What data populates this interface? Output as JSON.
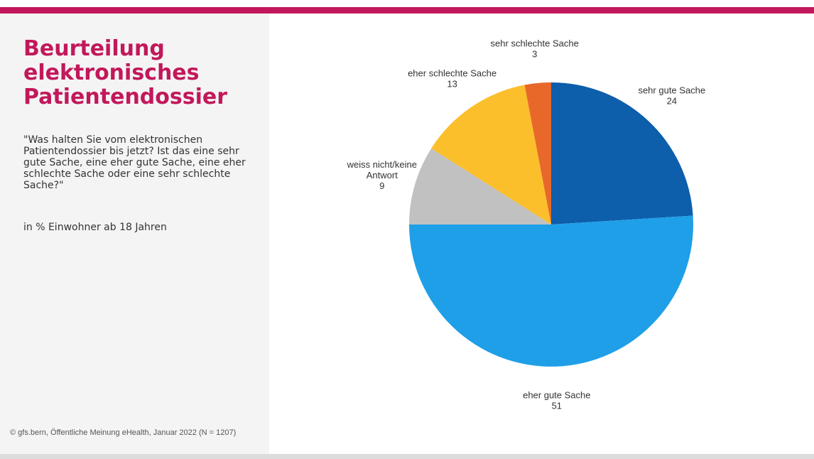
{
  "header": {
    "title_lines": [
      "Beurteilung",
      "elektronisches",
      "Patientendossier"
    ],
    "question": "\"Was halten Sie vom elektronischen Patientendossier bis jetzt? Ist das eine sehr gute Sache, eine eher gute Sache, eine eher schlechte Sache oder eine sehr schlechte Sache?\"",
    "unit_note": "in % Einwohner ab 18 Jahren"
  },
  "footer": {
    "source": "© gfs.bern, Öffentliche Meinung eHealth, Januar 2022 (N = 1207)"
  },
  "colors": {
    "accent": "#c2185b",
    "panel": "#f4f4f4"
  },
  "chart_data": {
    "type": "pie",
    "title": "",
    "slices": [
      {
        "label_lines": [
          "sehr gute Sache"
        ],
        "value": 24,
        "color": "#0d5eab"
      },
      {
        "label_lines": [
          "eher gute Sache"
        ],
        "value": 51,
        "color": "#1f9fe8"
      },
      {
        "label_lines": [
          "weiss nicht/keine",
          "Antwort"
        ],
        "value": 9,
        "color": "#c1c1c1"
      },
      {
        "label_lines": [
          "eher schlechte Sache"
        ],
        "value": 13,
        "color": "#fbbf2b"
      },
      {
        "label_lines": [
          "sehr schlechte Sache"
        ],
        "value": 3,
        "color": "#e8682a"
      }
    ]
  }
}
